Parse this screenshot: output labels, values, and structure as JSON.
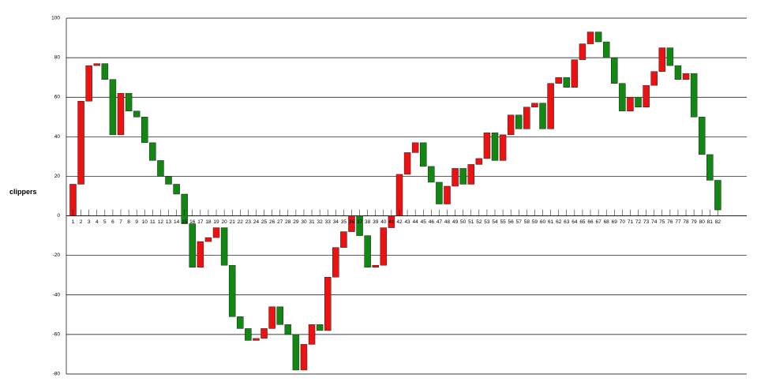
{
  "chart_data": {
    "type": "waterfall",
    "ylabel": "clippers",
    "ylim": [
      -80,
      100
    ],
    "yticks": [
      100,
      80,
      60,
      40,
      20,
      0,
      -20,
      -40,
      -60,
      -80
    ],
    "grid": true,
    "colors": {
      "up": "#ee1111",
      "down": "#118811",
      "axis": "#000000"
    },
    "categories": [
      "1",
      "2",
      "3",
      "4",
      "5",
      "6",
      "7",
      "8",
      "9",
      "10",
      "11",
      "12",
      "13",
      "14",
      "15",
      "16",
      "17",
      "18",
      "19",
      "20",
      "21",
      "22",
      "23",
      "24",
      "25",
      "26",
      "27",
      "28",
      "29",
      "30",
      "31",
      "32",
      "33",
      "34",
      "35",
      "36",
      "37",
      "38",
      "39",
      "40",
      "41",
      "42",
      "43",
      "44",
      "45",
      "46",
      "47",
      "48",
      "49",
      "50",
      "51",
      "52",
      "53",
      "54",
      "55",
      "56",
      "57",
      "58",
      "59",
      "60",
      "61",
      "62",
      "63",
      "64",
      "65",
      "66",
      "67",
      "68",
      "69",
      "70",
      "71",
      "72",
      "73",
      "74",
      "75",
      "76",
      "77",
      "78",
      "79",
      "80",
      "81",
      "82"
    ],
    "values": [
      16,
      58,
      76,
      77,
      69,
      41,
      62,
      53,
      50,
      37,
      28,
      20,
      16,
      11,
      -4,
      -26,
      -13,
      -11,
      -6,
      -25,
      -51,
      -57,
      -63,
      -62,
      -57,
      -46,
      -55,
      -60,
      -78,
      -65,
      -55,
      -58,
      -31,
      -16,
      -8,
      0,
      -10,
      -26,
      -25,
      -6,
      0,
      21,
      32,
      37,
      25,
      17,
      6,
      15,
      24,
      16,
      26,
      29,
      42,
      28,
      41,
      51,
      44,
      55,
      57,
      44,
      67,
      70,
      65,
      79,
      87,
      93,
      88,
      80,
      67,
      53,
      60,
      55,
      66,
      73,
      85,
      76,
      69,
      72,
      50,
      31,
      18,
      3
    ],
    "starts": [
      0,
      16,
      58,
      76,
      77,
      69,
      41,
      62,
      53,
      50,
      37,
      28,
      20,
      16,
      11,
      -4,
      -26,
      -13,
      -11,
      -6,
      -25,
      -51,
      -57,
      -63,
      -62,
      -57,
      -46,
      -55,
      -60,
      -78,
      -65,
      -55,
      -58,
      -31,
      -16,
      -8,
      0,
      -10,
      -26,
      -25,
      -6,
      0,
      21,
      32,
      37,
      25,
      17,
      6,
      15,
      24,
      16,
      26,
      29,
      42,
      28,
      41,
      51,
      44,
      55,
      57,
      44,
      67,
      70,
      65,
      79,
      87,
      93,
      88,
      80,
      67,
      53,
      60,
      55,
      66,
      73,
      85,
      76,
      69,
      72,
      50,
      31,
      18
    ]
  }
}
